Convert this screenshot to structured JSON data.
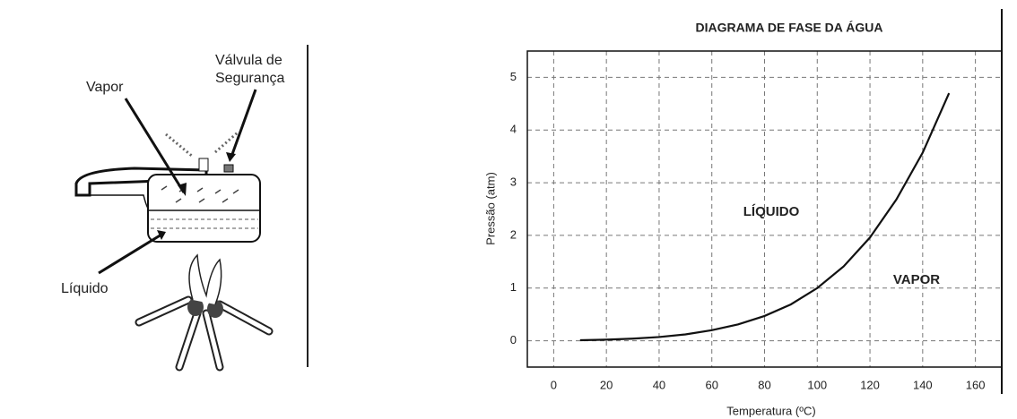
{
  "diagram": {
    "labels": {
      "valve_line1": "Válvula de",
      "valve_line2": "Segurança",
      "vapor": "Vapor",
      "liquid": "Líquido"
    }
  },
  "chart_data": {
    "type": "line",
    "title": "DIAGRAMA DE FASE DA ÁGUA",
    "x_label": "Temperatura (ºC)",
    "y_label": "Pressão (atm)",
    "x": [
      10,
      20,
      30,
      40,
      50,
      60,
      70,
      80,
      90,
      100,
      110,
      120,
      130,
      140,
      150
    ],
    "values": [
      0.01,
      0.02,
      0.04,
      0.07,
      0.12,
      0.2,
      0.31,
      0.47,
      0.69,
      1.0,
      1.41,
      1.96,
      2.68,
      3.57,
      4.7
    ],
    "color": "#111111",
    "xlim": [
      -10,
      170
    ],
    "ylim": [
      -0.5,
      5.5
    ],
    "xticks": [
      0,
      20,
      40,
      60,
      80,
      100,
      120,
      140,
      160
    ],
    "yticks": [
      0,
      1,
      2,
      3,
      4,
      5
    ],
    "grid": true,
    "annotations": [
      "LÍQUIDO",
      "VAPOR"
    ]
  }
}
